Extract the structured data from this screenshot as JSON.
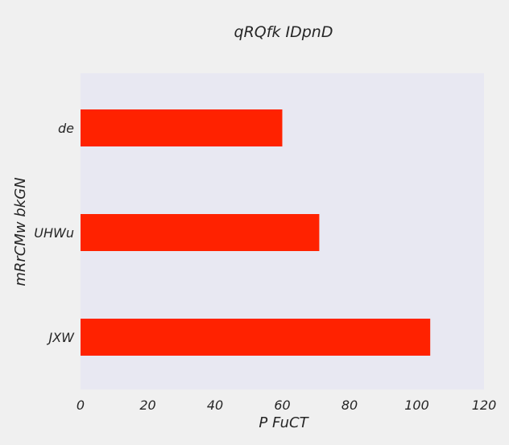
{
  "chart_data": {
    "type": "bar",
    "orientation": "horizontal",
    "title": "qRQfk IDpnD",
    "xlabel": "P FuCT",
    "ylabel": "mRrCMw bkGN",
    "categories": [
      "de",
      "UHWu",
      "JXW"
    ],
    "values": [
      60,
      71,
      104
    ],
    "xlim": [
      0,
      120
    ],
    "xticks": [
      0,
      20,
      40,
      60,
      80,
      100,
      120
    ],
    "grid": false,
    "colors": {
      "bar": "#ff2200",
      "plot_background": "#e8e8f2",
      "page_background": "#f0f0f0",
      "text": "#262626"
    }
  }
}
